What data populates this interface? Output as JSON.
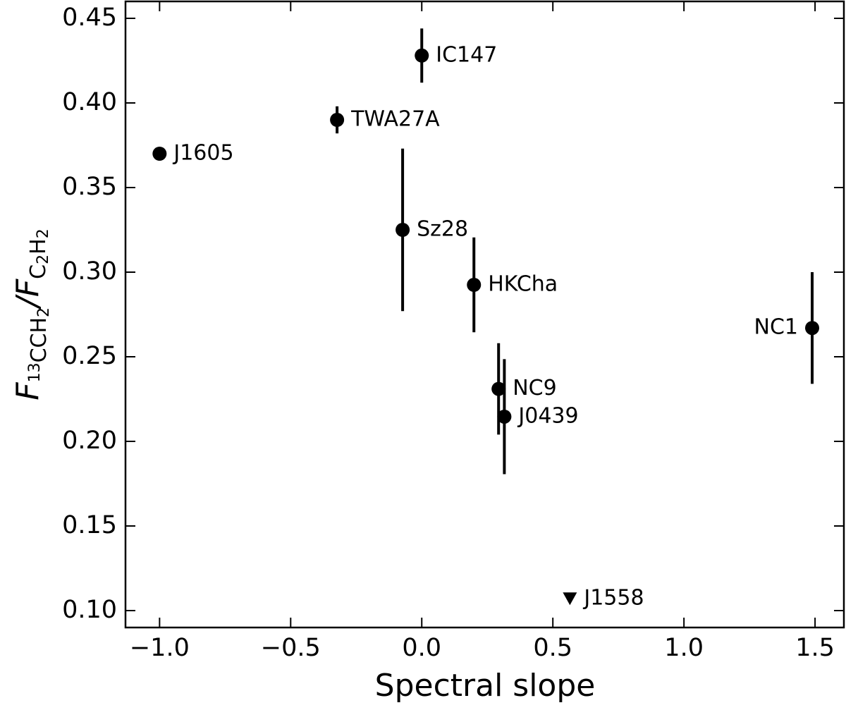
{
  "chart_data": {
    "type": "scatter",
    "xlabel": "Spectral slope",
    "ylabel": [
      "F",
      "13",
      "CCH",
      "2",
      "/",
      "F",
      "C",
      "2",
      "H",
      "2"
    ],
    "labels": [
      "J1605",
      "TWA27A",
      "IC147",
      "Sz28",
      "HKCha",
      "NC9",
      "J0439",
      "NC1",
      "J1558"
    ],
    "x": [
      -1.0,
      -0.323,
      0.0,
      -0.073,
      0.199,
      0.293,
      0.315,
      1.489,
      0.565
    ],
    "values": [
      0.37,
      0.39,
      0.428,
      0.325,
      0.2925,
      0.231,
      0.2146,
      0.267,
      0.107
    ],
    "yerr": [
      null,
      0.008,
      0.016,
      0.048,
      0.028,
      0.027,
      0.034,
      0.033,
      null
    ],
    "upper_limit": [
      false,
      false,
      false,
      false,
      false,
      false,
      false,
      false,
      true
    ],
    "color": "#000000",
    "xlim": [
      -1.13,
      1.61
    ],
    "ylim": [
      0.09,
      0.46
    ],
    "xticks": [
      {
        "value": -1.0,
        "label": "−1.0"
      },
      {
        "value": -0.5,
        "label": "−0.5"
      },
      {
        "value": 0.0,
        "label": "0.0"
      },
      0.5,
      {
        "value": 1.0,
        "label": "1.0"
      },
      1.5
    ],
    "yticks": [
      {
        "value": 0.1,
        "label": "0.10"
      },
      0.15,
      {
        "value": 0.2,
        "label": "0.20"
      },
      0.25,
      {
        "value": 0.3,
        "label": "0.30"
      },
      0.35,
      {
        "value": 0.4,
        "label": "0.40"
      },
      0.45
    ]
  }
}
